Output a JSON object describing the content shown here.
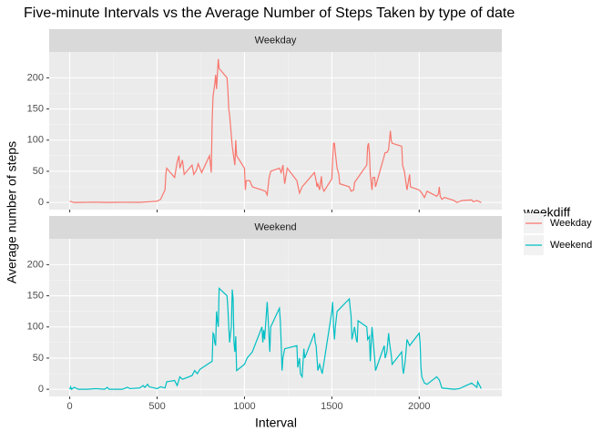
{
  "title": "Five-minute Intervals vs the Average Number of Steps Taken by type of date",
  "x_label": "Interval",
  "y_label": "Average number of steps",
  "legend_title": "weekdiff",
  "chart_data": [
    {
      "type": "line",
      "x": [
        0,
        25,
        50,
        100,
        150,
        200,
        300,
        400,
        450,
        500,
        520,
        545,
        550,
        555,
        600,
        615,
        625,
        630,
        645,
        655,
        700,
        710,
        725,
        735,
        745,
        755,
        800,
        810,
        815,
        820,
        830,
        835,
        840,
        850,
        855,
        900,
        905,
        910,
        915,
        930,
        935,
        945,
        950,
        955,
        1000,
        1005,
        1010,
        1030,
        1045,
        1100,
        1120,
        1130,
        1140,
        1150,
        1200,
        1210,
        1220,
        1225,
        1230,
        1245,
        1300,
        1305,
        1315,
        1330,
        1345,
        1400,
        1410,
        1415,
        1420,
        1430,
        1440,
        1445,
        1455,
        1500,
        1505,
        1510,
        1515,
        1520,
        1530,
        1540,
        1545,
        1600,
        1610,
        1625,
        1630,
        1700,
        1705,
        1710,
        1715,
        1720,
        1730,
        1735,
        1745,
        1750,
        1800,
        1805,
        1815,
        1825,
        1830,
        1835,
        1840,
        1845,
        1900,
        1905,
        1915,
        1920,
        1930,
        1945,
        1950,
        2000,
        2015,
        2030,
        2045,
        2100,
        2110,
        2115,
        2120,
        2130,
        2145,
        2200,
        2215,
        2245,
        2300,
        2310,
        2330,
        2355
      ],
      "series": [
        {
          "name": "Weekday",
          "color": "#F8766D",
          "values": [
            2,
            0,
            0,
            0.3,
            0.5,
            0,
            0.3,
            0.2,
            1,
            2,
            5,
            20,
            45,
            55,
            40,
            65,
            75,
            55,
            68,
            45,
            60,
            45,
            52,
            62,
            55,
            48,
            75,
            48,
            130,
            170,
            190,
            205,
            182,
            230,
            215,
            200,
            180,
            150,
            140,
            90,
            80,
            60,
            100,
            75,
            55,
            20,
            35,
            35,
            25,
            20,
            18,
            12,
            38,
            50,
            55,
            48,
            60,
            45,
            30,
            55,
            35,
            28,
            15,
            25,
            30,
            48,
            35,
            25,
            30,
            20,
            42,
            25,
            18,
            38,
            70,
            95,
            95,
            80,
            55,
            45,
            30,
            25,
            18,
            20,
            32,
            60,
            90,
            95,
            80,
            45,
            20,
            40,
            40,
            25,
            75,
            80,
            80,
            85,
            100,
            115,
            100,
            95,
            90,
            60,
            50,
            40,
            20,
            45,
            25,
            20,
            15,
            8,
            18,
            10,
            14,
            25,
            10,
            5,
            8,
            3,
            0,
            3,
            4,
            1,
            3,
            0
          ]
        }
      ],
      "xlim": [
        -117.75,
        2472.75
      ],
      "xticks": [
        0,
        500,
        1000,
        1500,
        2000
      ],
      "ylim": [
        -11.5,
        241.5
      ],
      "yticks": [
        0,
        50,
        100,
        150,
        200
      ]
    },
    {
      "type": "line",
      "x": [
        0,
        5,
        10,
        25,
        50,
        100,
        150,
        200,
        215,
        225,
        300,
        330,
        345,
        400,
        420,
        430,
        445,
        455,
        500,
        520,
        545,
        555,
        600,
        615,
        630,
        645,
        700,
        715,
        730,
        745,
        815,
        820,
        825,
        830,
        835,
        840,
        845,
        850,
        855,
        900,
        905,
        910,
        915,
        920,
        925,
        930,
        935,
        940,
        945,
        950,
        955,
        1000,
        1015,
        1030,
        1045,
        1100,
        1105,
        1110,
        1115,
        1130,
        1135,
        1145,
        1150,
        1200,
        1205,
        1210,
        1215,
        1220,
        1230,
        1300,
        1305,
        1315,
        1320,
        1330,
        1340,
        1345,
        1400,
        1405,
        1410,
        1420,
        1430,
        1445,
        1500,
        1505,
        1510,
        1515,
        1520,
        1530,
        1600,
        1605,
        1610,
        1615,
        1630,
        1640,
        1645,
        1650,
        1700,
        1705,
        1715,
        1720,
        1730,
        1745,
        1750,
        1800,
        1805,
        1815,
        1825,
        1830,
        1840,
        1845,
        1900,
        1905,
        1910,
        1920,
        1930,
        1945,
        2000,
        2005,
        2010,
        2015,
        2030,
        2045,
        2100,
        2115,
        2130,
        2200,
        2230,
        2300,
        2330,
        2335,
        2355
      ],
      "series": [
        {
          "name": "Weekend",
          "color": "#00BFC4",
          "values": [
            0,
            4,
            0,
            3,
            0,
            0,
            1,
            0,
            3,
            0,
            0,
            3,
            1,
            2,
            6,
            3,
            8,
            4,
            1,
            4,
            2,
            12,
            14,
            6,
            20,
            16,
            22,
            30,
            25,
            32,
            45,
            90,
            88,
            75,
            70,
            125,
            110,
            100,
            162,
            150,
            130,
            100,
            75,
            90,
            100,
            160,
            145,
            75,
            60,
            85,
            30,
            40,
            50,
            55,
            60,
            100,
            75,
            95,
            80,
            140,
            115,
            60,
            100,
            130,
            110,
            75,
            30,
            50,
            65,
            70,
            35,
            50,
            25,
            20,
            65,
            50,
            90,
            75,
            70,
            30,
            40,
            25,
            125,
            140,
            100,
            80,
            100,
            125,
            145,
            130,
            118,
            80,
            100,
            80,
            75,
            110,
            100,
            80,
            85,
            45,
            100,
            50,
            30,
            70,
            50,
            60,
            90,
            75,
            55,
            40,
            60,
            35,
            25,
            45,
            80,
            70,
            90,
            75,
            35,
            20,
            10,
            8,
            20,
            15,
            2,
            0,
            1,
            10,
            3,
            12,
            1
          ]
        }
      ],
      "xlim": [
        -117.75,
        2472.75
      ],
      "xticks": [
        0,
        500,
        1000,
        1500,
        2000
      ],
      "ylim": [
        -11.5,
        241.5
      ],
      "yticks": [
        0,
        50,
        100,
        150,
        200
      ]
    }
  ]
}
